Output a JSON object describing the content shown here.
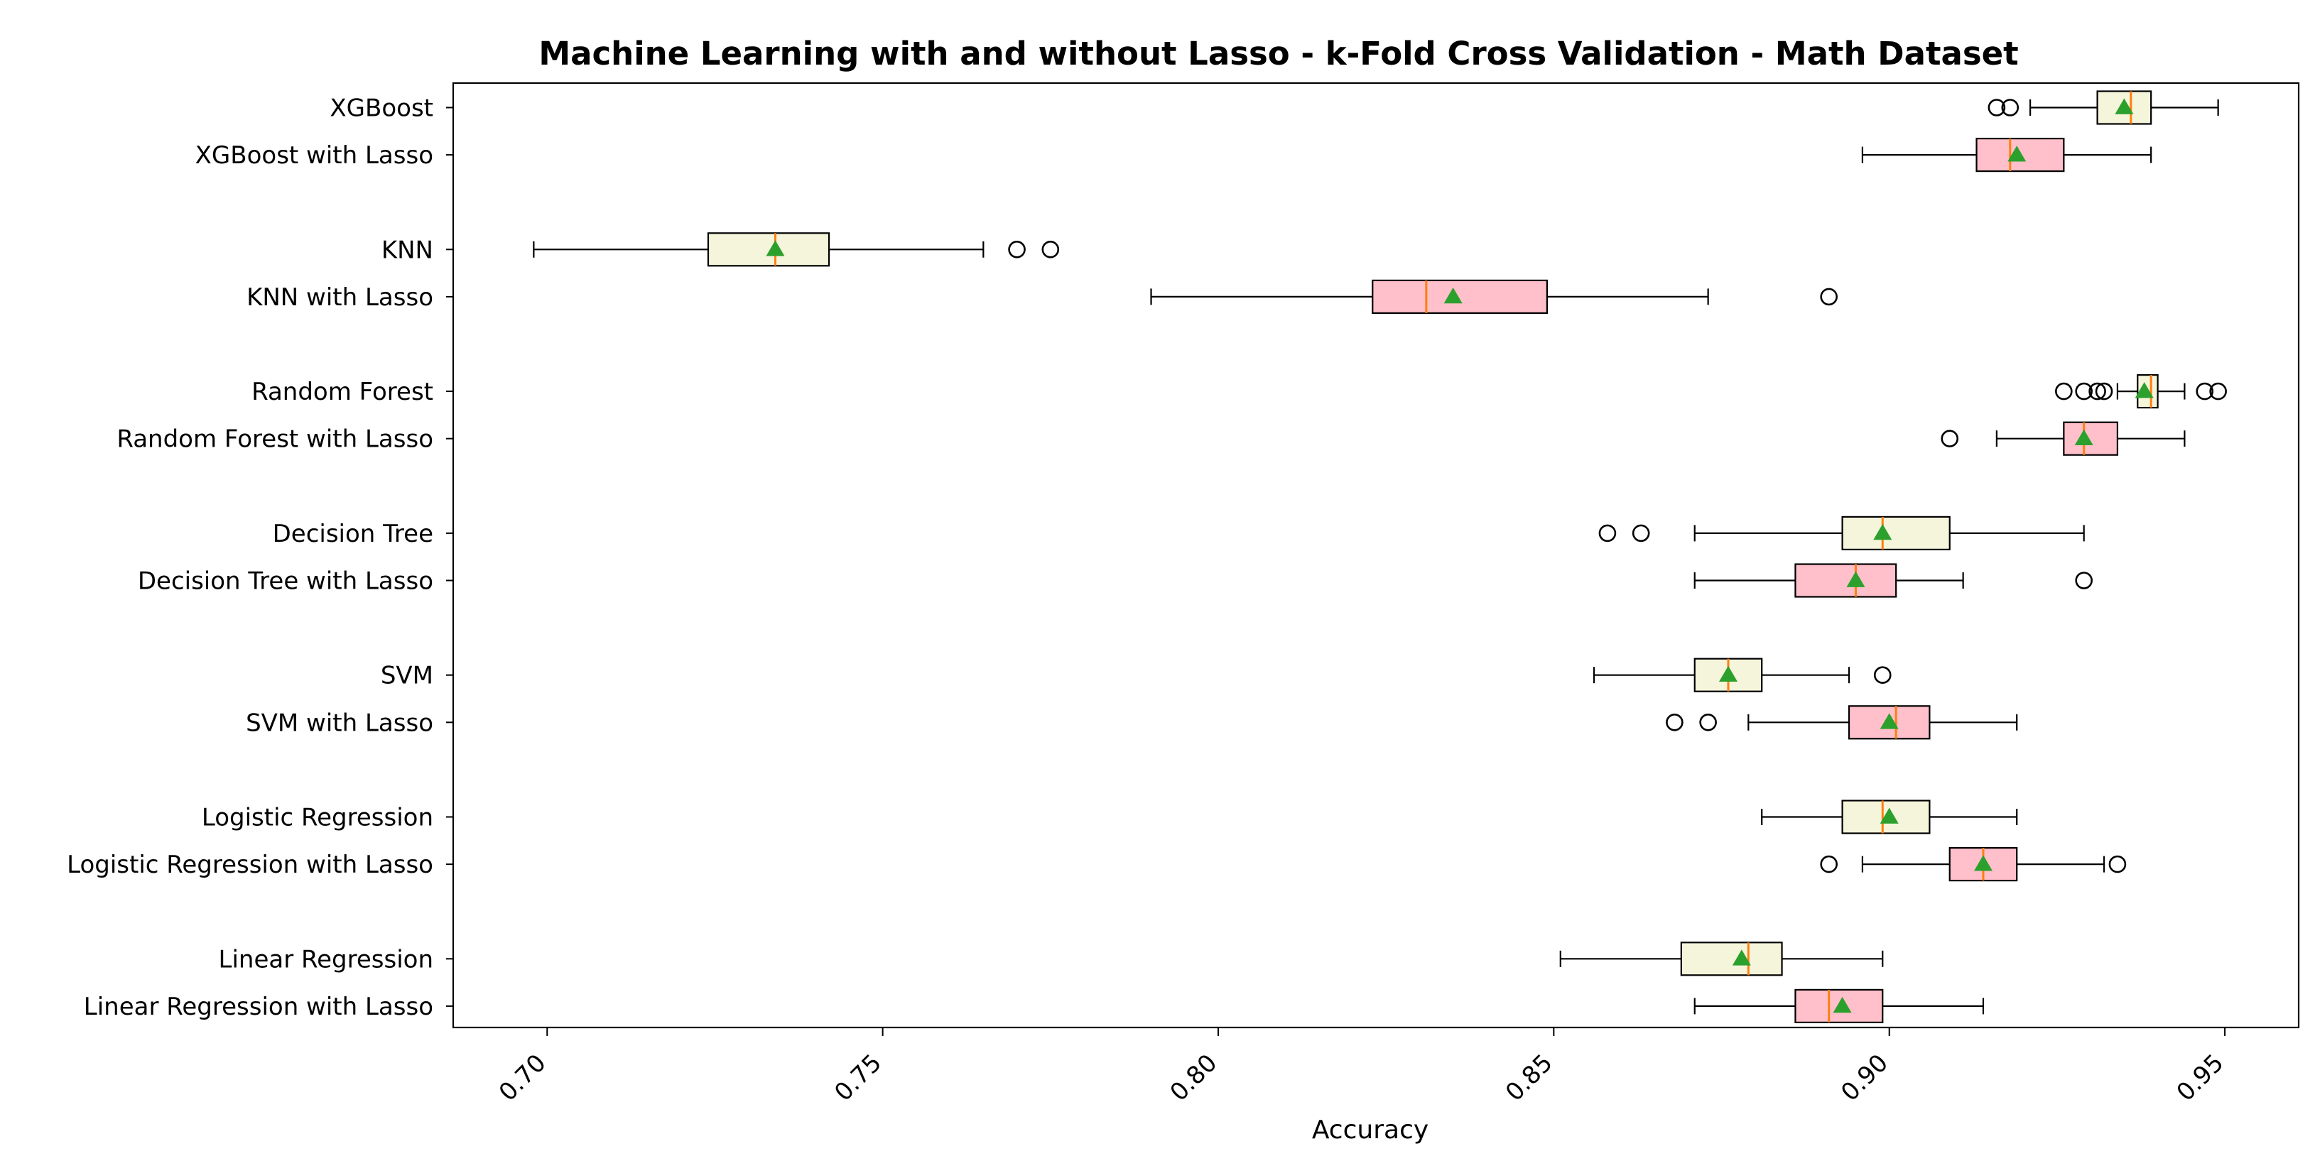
{
  "chart_data": {
    "type": "boxplot",
    "orientation": "horizontal",
    "title": "Machine Learning with and without Lasso - k-Fold Cross Validation - Math Dataset",
    "xlabel": "Accuracy",
    "ylabel": "",
    "xlim": [
      0.686,
      0.961
    ],
    "xticks": [
      0.7,
      0.75,
      0.8,
      0.85,
      0.9,
      0.95
    ],
    "xtick_labels": [
      "0.70",
      "0.75",
      "0.80",
      "0.85",
      "0.90",
      "0.95"
    ],
    "grid": false,
    "colors": {
      "without_lasso_fill": "#f5f5dc",
      "with_lasso_fill": "#ffc0cb",
      "median": "#ff7f0e",
      "mean": "#2ca02c",
      "edge": "#000000"
    },
    "series": [
      {
        "name": "XGBoost",
        "group": "without",
        "whisker_low": 0.921,
        "q1": 0.931,
        "median": 0.936,
        "q3": 0.939,
        "whisker_high": 0.949,
        "mean": 0.935,
        "outliers": [
          0.916,
          0.918
        ]
      },
      {
        "name": "XGBoost with Lasso",
        "group": "with",
        "whisker_low": 0.896,
        "q1": 0.913,
        "median": 0.918,
        "q3": 0.926,
        "whisker_high": 0.939,
        "mean": 0.919,
        "outliers": []
      },
      {
        "name": "KNN",
        "group": "without",
        "whisker_low": 0.698,
        "q1": 0.724,
        "median": 0.734,
        "q3": 0.742,
        "whisker_high": 0.765,
        "mean": 0.734,
        "outliers": [
          0.77,
          0.775
        ]
      },
      {
        "name": "KNN with Lasso",
        "group": "with",
        "whisker_low": 0.79,
        "q1": 0.823,
        "median": 0.831,
        "q3": 0.849,
        "whisker_high": 0.873,
        "mean": 0.835,
        "outliers": [
          0.891
        ]
      },
      {
        "name": "Random Forest",
        "group": "without",
        "whisker_low": 0.934,
        "q1": 0.937,
        "median": 0.939,
        "q3": 0.94,
        "whisker_high": 0.944,
        "mean": 0.938,
        "outliers": [
          0.926,
          0.929,
          0.931,
          0.932,
          0.947,
          0.949
        ]
      },
      {
        "name": "Random Forest with Lasso",
        "group": "with",
        "whisker_low": 0.916,
        "q1": 0.926,
        "median": 0.929,
        "q3": 0.934,
        "whisker_high": 0.944,
        "mean": 0.929,
        "outliers": [
          0.909
        ]
      },
      {
        "name": "Decision Tree",
        "group": "without",
        "whisker_low": 0.871,
        "q1": 0.893,
        "median": 0.899,
        "q3": 0.909,
        "whisker_high": 0.929,
        "mean": 0.899,
        "outliers": [
          0.858,
          0.863
        ]
      },
      {
        "name": "Decision Tree with Lasso",
        "group": "with",
        "whisker_low": 0.871,
        "q1": 0.886,
        "median": 0.895,
        "q3": 0.901,
        "whisker_high": 0.911,
        "mean": 0.895,
        "outliers": [
          0.929
        ]
      },
      {
        "name": "SVM",
        "group": "without",
        "whisker_low": 0.856,
        "q1": 0.871,
        "median": 0.876,
        "q3": 0.881,
        "whisker_high": 0.894,
        "mean": 0.876,
        "outliers": [
          0.899
        ]
      },
      {
        "name": "SVM with Lasso",
        "group": "with",
        "whisker_low": 0.879,
        "q1": 0.894,
        "median": 0.901,
        "q3": 0.906,
        "whisker_high": 0.919,
        "mean": 0.9,
        "outliers": [
          0.868,
          0.873
        ]
      },
      {
        "name": "Logistic Regression",
        "group": "without",
        "whisker_low": 0.881,
        "q1": 0.893,
        "median": 0.899,
        "q3": 0.906,
        "whisker_high": 0.919,
        "mean": 0.9,
        "outliers": []
      },
      {
        "name": "Logistic Regression with Lasso",
        "group": "with",
        "whisker_low": 0.896,
        "q1": 0.909,
        "median": 0.914,
        "q3": 0.919,
        "whisker_high": 0.932,
        "mean": 0.914,
        "outliers": [
          0.891,
          0.934
        ]
      },
      {
        "name": "Linear Regression",
        "group": "without",
        "whisker_low": 0.851,
        "q1": 0.869,
        "median": 0.879,
        "q3": 0.884,
        "whisker_high": 0.899,
        "mean": 0.878,
        "outliers": []
      },
      {
        "name": "Linear Regression with Lasso",
        "group": "with",
        "whisker_low": 0.871,
        "q1": 0.886,
        "median": 0.891,
        "q3": 0.899,
        "whisker_high": 0.914,
        "mean": 0.893,
        "outliers": []
      }
    ]
  }
}
